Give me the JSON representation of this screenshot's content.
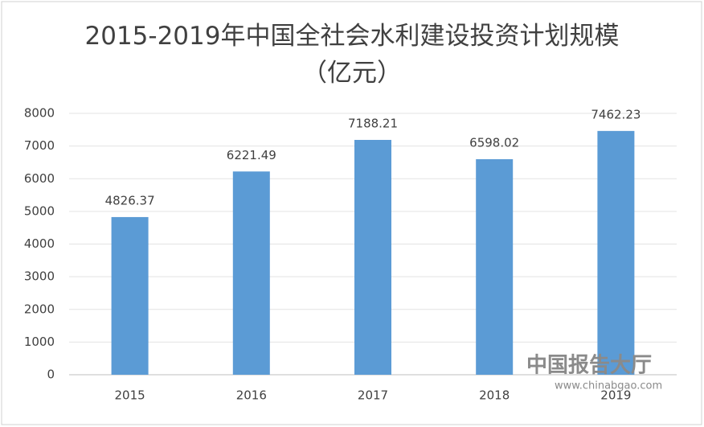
{
  "chart_data": {
    "type": "bar",
    "title": "2015-2019年中国全社会水利建设投资计划规模（亿元）",
    "categories": [
      "2015",
      "2016",
      "2017",
      "2018",
      "2019"
    ],
    "values": [
      4826.37,
      6221.49,
      7188.21,
      6598.02,
      7462.23
    ],
    "color": "#5b9bd5",
    "ylim": [
      0,
      8000
    ],
    "yticks": [
      0,
      1000,
      2000,
      3000,
      4000,
      5000,
      6000,
      7000,
      8000
    ],
    "grid": true,
    "watermark": {
      "name": "中国报告大厅",
      "url": "www.chinabgao.com"
    }
  }
}
